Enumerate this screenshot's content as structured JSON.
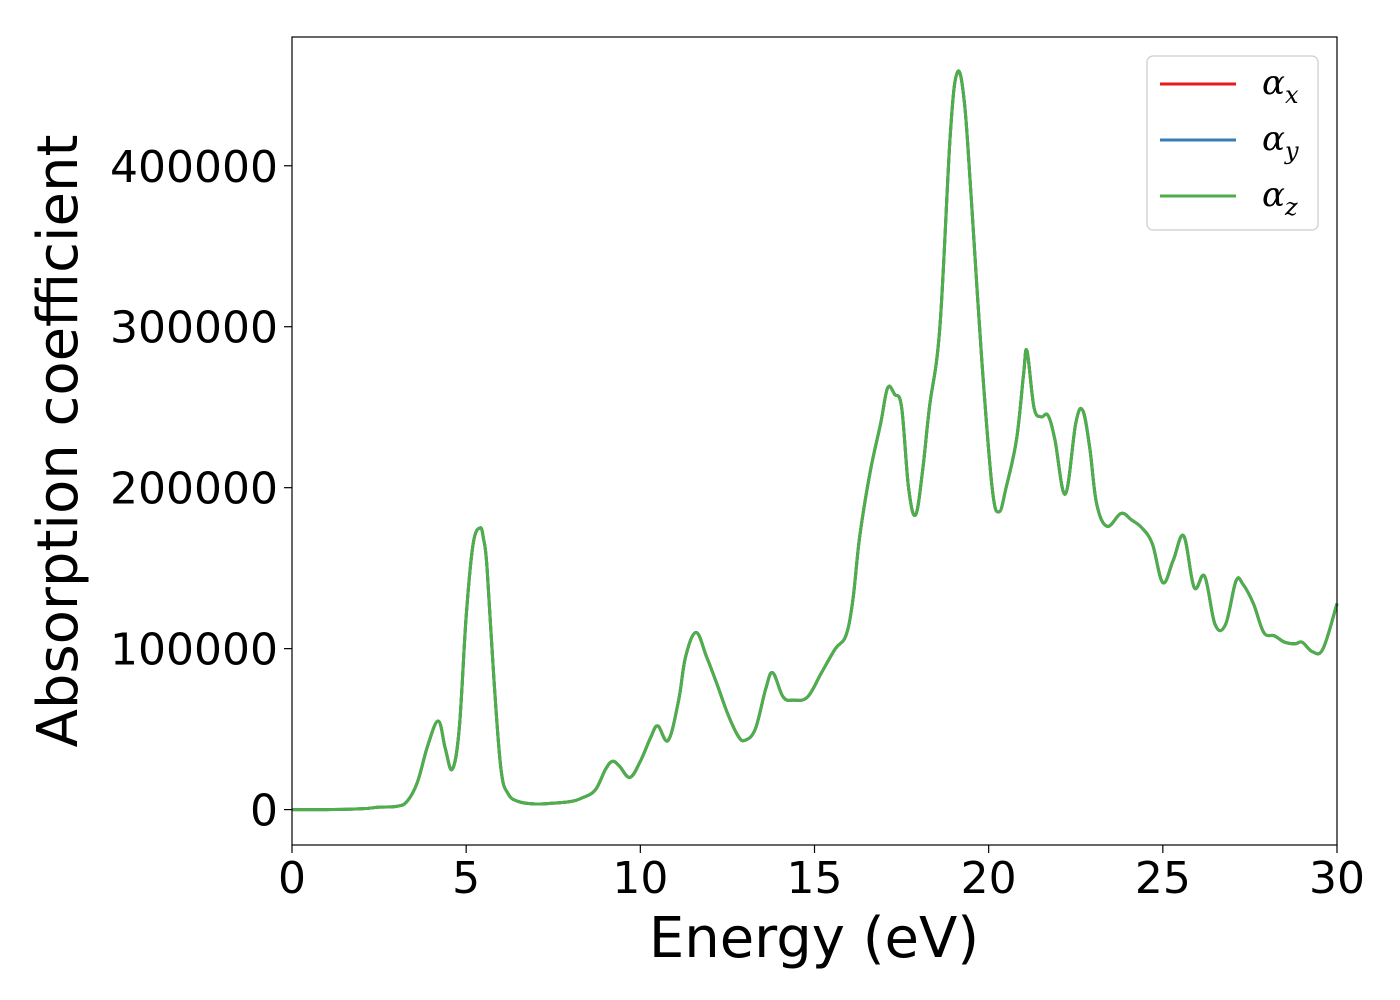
{
  "chart_data": {
    "type": "line",
    "title": "",
    "xlabel": "Energy (eV)",
    "ylabel": "Absorption coefficient",
    "xlim": [
      0,
      30
    ],
    "ylim": [
      -22000,
      480000
    ],
    "xticks": [
      0,
      5,
      10,
      15,
      20,
      25,
      30
    ],
    "xtick_labels": [
      "0",
      "5",
      "10",
      "15",
      "20",
      "25",
      "30"
    ],
    "yticks": [
      0,
      100000,
      200000,
      300000,
      400000
    ],
    "ytick_labels": [
      "0",
      "100000",
      "200000",
      "300000",
      "400000"
    ],
    "grid": false,
    "legend_position": "upper right",
    "series": [
      {
        "name": "α",
        "subscript": "x",
        "color": "#e41a1c"
      },
      {
        "name": "α",
        "subscript": "y",
        "color": "#377eb8"
      },
      {
        "name": "α",
        "subscript": "z",
        "color": "#4daf4a"
      }
    ],
    "x": [
      0.0,
      1.0,
      2.0,
      2.5,
      3.0,
      3.3,
      3.6,
      3.9,
      4.2,
      4.4,
      4.6,
      4.8,
      5.0,
      5.2,
      5.4,
      5.5,
      5.6,
      5.8,
      6.0,
      6.2,
      6.5,
      7.0,
      7.5,
      8.0,
      8.3,
      8.7,
      9.0,
      9.2,
      9.4,
      9.7,
      10.0,
      10.3,
      10.5,
      10.8,
      11.1,
      11.3,
      11.6,
      11.9,
      12.2,
      12.5,
      12.8,
      13.0,
      13.3,
      13.6,
      13.8,
      14.1,
      14.4,
      14.8,
      15.2,
      15.6,
      15.9,
      16.1,
      16.3,
      16.6,
      16.9,
      17.1,
      17.3,
      17.5,
      17.7,
      17.9,
      18.1,
      18.3,
      18.6,
      18.9,
      19.1,
      19.3,
      19.5,
      19.8,
      20.1,
      20.3,
      20.5,
      20.8,
      21.0,
      21.1,
      21.3,
      21.5,
      21.7,
      21.9,
      22.2,
      22.5,
      22.7,
      22.9,
      23.1,
      23.4,
      23.8,
      24.1,
      24.4,
      24.7,
      25.0,
      25.3,
      25.6,
      25.9,
      26.2,
      26.5,
      26.8,
      27.1,
      27.3,
      27.6,
      27.9,
      28.2,
      28.5,
      28.8,
      29.0,
      29.3,
      29.6,
      30.0
    ],
    "y": [
      0,
      0,
      500,
      1500,
      2000,
      5000,
      17000,
      40000,
      55000,
      38000,
      25000,
      50000,
      120000,
      165000,
      175000,
      168000,
      150000,
      80000,
      25000,
      10000,
      5000,
      3500,
      4000,
      5000,
      7000,
      12000,
      25000,
      30000,
      27000,
      20000,
      30000,
      45000,
      52000,
      43000,
      68000,
      95000,
      110000,
      95000,
      78000,
      60000,
      46000,
      43000,
      50000,
      75000,
      85000,
      70000,
      68000,
      70000,
      85000,
      100000,
      108000,
      130000,
      170000,
      210000,
      240000,
      262000,
      258000,
      250000,
      200000,
      183000,
      210000,
      250000,
      300000,
      420000,
      458000,
      440000,
      380000,
      280000,
      200000,
      185000,
      200000,
      230000,
      270000,
      285000,
      250000,
      244000,
      245000,
      230000,
      196000,
      240000,
      248000,
      225000,
      190000,
      176000,
      184000,
      180000,
      175000,
      165000,
      141000,
      155000,
      170000,
      138000,
      145000,
      115000,
      115000,
      142000,
      140000,
      128000,
      110000,
      108000,
      104000,
      103000,
      104000,
      98000,
      100000,
      128000
    ]
  }
}
